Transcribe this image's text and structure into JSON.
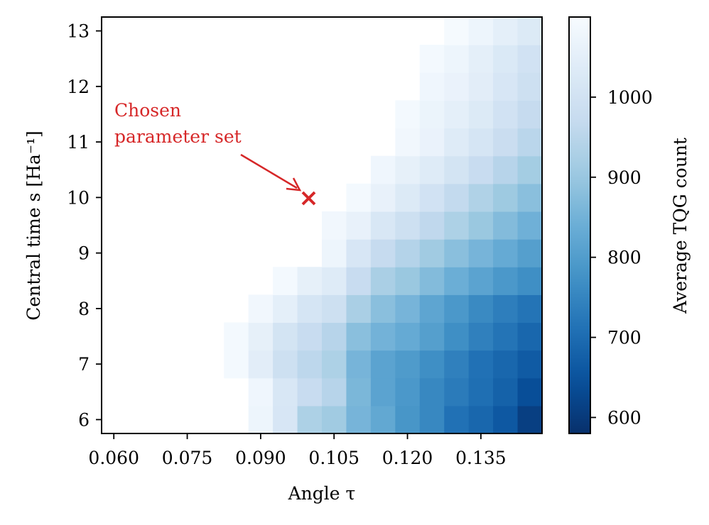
{
  "chart_data": {
    "type": "heatmap",
    "xlabel": "Angle τ",
    "ylabel": "Central time s [Ha⁻¹]",
    "colorbar_label": "Average TQG count",
    "colormap": "Blues_r",
    "x_values": [
      0.06,
      0.065,
      0.07,
      0.075,
      0.08,
      0.085,
      0.09,
      0.095,
      0.1,
      0.105,
      0.11,
      0.115,
      0.12,
      0.125,
      0.13,
      0.135,
      0.14,
      0.145
    ],
    "y_values": [
      6.0,
      6.5,
      7.0,
      7.5,
      8.0,
      8.5,
      9.0,
      9.5,
      10.0,
      10.5,
      11.0,
      11.5,
      12.0,
      12.5,
      13.0
    ],
    "x_ticks": [
      0.06,
      0.075,
      0.09,
      0.105,
      0.12,
      0.135
    ],
    "x_tick_labels": [
      "0.060",
      "0.075",
      "0.090",
      "0.105",
      "0.120",
      "0.135"
    ],
    "y_ticks": [
      6,
      7,
      8,
      9,
      10,
      11,
      12,
      13
    ],
    "y_tick_labels": [
      "6",
      "7",
      "8",
      "9",
      "10",
      "11",
      "12",
      "13"
    ],
    "colorbar_ticks": [
      600,
      700,
      800,
      900,
      1000
    ],
    "colorbar_tick_labels": [
      "600",
      "700",
      "800",
      "900",
      "1000"
    ],
    "color_range": [
      580,
      1100
    ],
    "xlim": [
      0.0575,
      0.1475
    ],
    "ylim": [
      5.75,
      13.25
    ],
    "z": [
      [
        null,
        null,
        null,
        null,
        null,
        null,
        1075,
        1015,
        930,
        910,
        855,
        825,
        785,
        755,
        710,
        690,
        660,
        610
      ],
      [
        null,
        null,
        null,
        null,
        null,
        null,
        1080,
        1020,
        975,
        945,
        860,
        815,
        790,
        755,
        730,
        705,
        680,
        640
      ],
      [
        null,
        null,
        null,
        null,
        null,
        1090,
        1045,
        990,
        955,
        930,
        855,
        815,
        795,
        770,
        740,
        710,
        690,
        665
      ],
      [
        null,
        null,
        null,
        null,
        null,
        1090,
        1055,
        1005,
        975,
        945,
        880,
        850,
        830,
        805,
        770,
        740,
        715,
        690
      ],
      [
        null,
        null,
        null,
        null,
        null,
        null,
        1085,
        1050,
        1010,
        990,
        925,
        880,
        855,
        820,
        790,
        760,
        735,
        715
      ],
      [
        null,
        null,
        null,
        null,
        null,
        null,
        null,
        1090,
        1055,
        1035,
        975,
        925,
        900,
        870,
        840,
        815,
        790,
        770
      ],
      [
        null,
        null,
        null,
        null,
        null,
        null,
        null,
        null,
        null,
        1075,
        1015,
        970,
        940,
        910,
        880,
        855,
        830,
        805
      ],
      [
        null,
        null,
        null,
        null,
        null,
        null,
        null,
        null,
        null,
        1085,
        1060,
        1020,
        990,
        960,
        930,
        900,
        870,
        845
      ],
      [
        null,
        null,
        null,
        null,
        null,
        null,
        null,
        null,
        null,
        null,
        1090,
        1060,
        1030,
        1000,
        965,
        935,
        905,
        880
      ],
      [
        null,
        null,
        null,
        null,
        null,
        null,
        null,
        null,
        null,
        null,
        null,
        1080,
        1055,
        1035,
        1005,
        975,
        945,
        915
      ],
      [
        null,
        null,
        null,
        null,
        null,
        null,
        null,
        null,
        null,
        null,
        null,
        null,
        1085,
        1065,
        1035,
        1010,
        980,
        950
      ],
      [
        null,
        null,
        null,
        null,
        null,
        null,
        null,
        null,
        null,
        null,
        null,
        null,
        1090,
        1070,
        1050,
        1030,
        1000,
        970
      ],
      [
        null,
        null,
        null,
        null,
        null,
        null,
        null,
        null,
        null,
        null,
        null,
        null,
        null,
        1080,
        1065,
        1045,
        1015,
        990
      ],
      [
        null,
        null,
        null,
        null,
        null,
        null,
        null,
        null,
        null,
        null,
        null,
        null,
        null,
        1090,
        1075,
        1050,
        1025,
        1000
      ],
      [
        null,
        null,
        null,
        null,
        null,
        null,
        null,
        null,
        null,
        null,
        null,
        null,
        null,
        null,
        1095,
        1075,
        1050,
        1030
      ]
    ],
    "annotation": {
      "text_lines": [
        "Chosen",
        "parameter set"
      ],
      "point": [
        0.1,
        10.0
      ],
      "text_anchor": [
        0.06,
        11.5
      ],
      "color": "#d62728"
    }
  }
}
